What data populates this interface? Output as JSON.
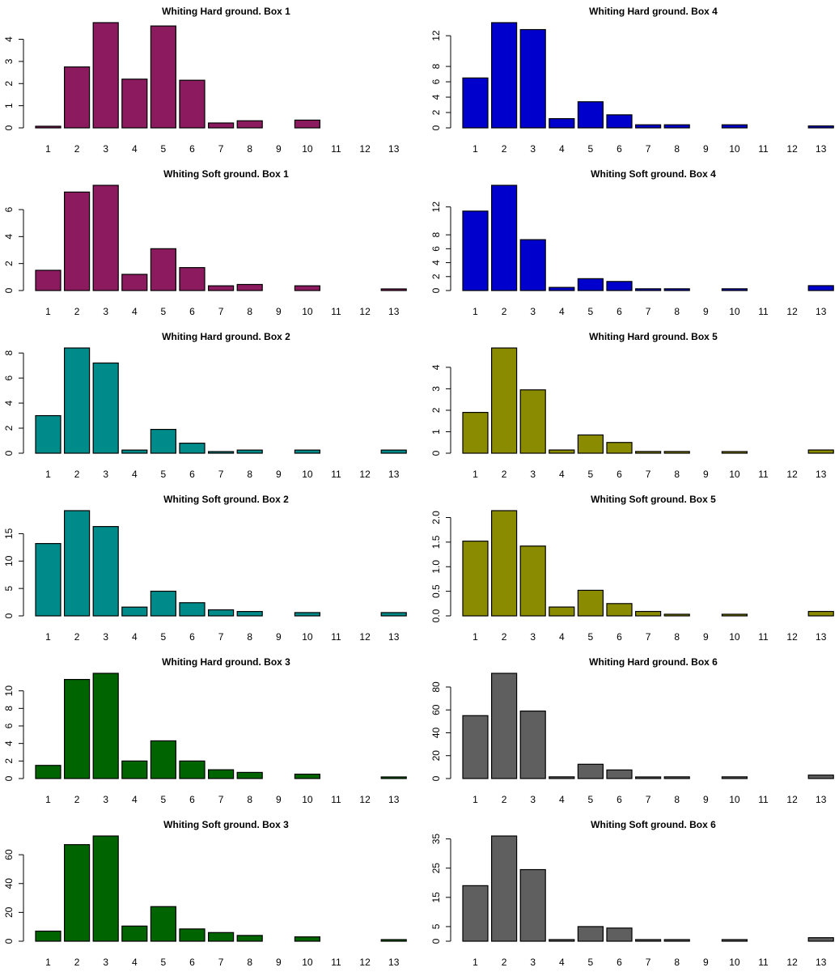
{
  "chart_data": [
    {
      "type": "bar",
      "title": "Whiting Hard ground. Box 1",
      "color": "#8B1A5E",
      "categories": [
        "1",
        "2",
        "3",
        "4",
        "5",
        "6",
        "7",
        "8",
        "9",
        "10",
        "11",
        "12",
        "13"
      ],
      "values": [
        0.02,
        2.75,
        4.75,
        2.2,
        4.6,
        2.15,
        0.22,
        0.32,
        0,
        0.35,
        0,
        0,
        0
      ],
      "ylim": [
        0,
        4.75
      ],
      "yticks": [
        0,
        1,
        2,
        3,
        4
      ],
      "ytick_labels": [
        "0",
        "1",
        "2",
        "3",
        "4"
      ],
      "xtick_labels": [
        "1",
        "2",
        "3",
        "4",
        "5",
        "6",
        "7",
        "8",
        "9",
        "10",
        "11",
        "12",
        "13"
      ]
    },
    {
      "type": "bar",
      "title": "Whiting Hard ground. Box 4",
      "color": "#0000CD",
      "categories": [
        "1",
        "2",
        "3",
        "4",
        "5",
        "6",
        "7",
        "8",
        "9",
        "10",
        "11",
        "12",
        "13"
      ],
      "values": [
        6.5,
        13.7,
        12.8,
        1.2,
        3.4,
        1.7,
        0.4,
        0.4,
        0,
        0.4,
        0,
        0,
        0.25
      ],
      "ylim": [
        0,
        13.7
      ],
      "yticks": [
        0,
        2,
        4,
        6,
        8,
        12
      ],
      "ytick_labels": [
        "0",
        "2",
        "4",
        "6",
        "8",
        "12"
      ],
      "xtick_labels": [
        "1",
        "2",
        "3",
        "4",
        "5",
        "6",
        "7",
        "8",
        "9",
        "10",
        "11",
        "12",
        "13"
      ]
    },
    {
      "type": "bar",
      "title": "Whiting Soft ground. Box 1",
      "color": "#8B1A5E",
      "categories": [
        "1",
        "2",
        "3",
        "4",
        "5",
        "6",
        "7",
        "8",
        "9",
        "10",
        "11",
        "12",
        "13"
      ],
      "values": [
        1.5,
        7.3,
        7.8,
        1.2,
        3.1,
        1.7,
        0.35,
        0.45,
        0,
        0.35,
        0,
        0,
        0.12
      ],
      "ylim": [
        0,
        7.8
      ],
      "yticks": [
        0,
        2,
        4,
        6
      ],
      "ytick_labels": [
        "0",
        "2",
        "4",
        "6"
      ],
      "xtick_labels": [
        "1",
        "2",
        "3",
        "4",
        "5",
        "6",
        "7",
        "8",
        "9",
        "10",
        "11",
        "12",
        "13"
      ]
    },
    {
      "type": "bar",
      "title": "Whiting Soft ground. Box 4",
      "color": "#0000CD",
      "categories": [
        "1",
        "2",
        "3",
        "4",
        "5",
        "6",
        "7",
        "8",
        "9",
        "10",
        "11",
        "12",
        "13"
      ],
      "values": [
        11.4,
        15.1,
        7.3,
        0.45,
        1.7,
        1.3,
        0.25,
        0.25,
        0,
        0.25,
        0,
        0,
        0.7
      ],
      "ylim": [
        0,
        15.1
      ],
      "yticks": [
        0,
        2,
        4,
        6,
        8,
        12
      ],
      "ytick_labels": [
        "0",
        "2",
        "4",
        "6",
        "8",
        "12"
      ],
      "xtick_labels": [
        "1",
        "2",
        "3",
        "4",
        "5",
        "6",
        "7",
        "8",
        "9",
        "10",
        "11",
        "12",
        "13"
      ]
    },
    {
      "type": "bar",
      "title": "Whiting Hard ground. Box 2",
      "color": "#008B8B",
      "categories": [
        "1",
        "2",
        "3",
        "4",
        "5",
        "6",
        "7",
        "8",
        "9",
        "10",
        "11",
        "12",
        "13"
      ],
      "values": [
        3.0,
        8.4,
        7.2,
        0.25,
        1.9,
        0.8,
        0.12,
        0.25,
        0,
        0.25,
        0,
        0,
        0.25
      ],
      "ylim": [
        0,
        8.4
      ],
      "yticks": [
        0,
        2,
        4,
        6,
        8
      ],
      "ytick_labels": [
        "0",
        "2",
        "4",
        "6",
        "8"
      ],
      "xtick_labels": [
        "1",
        "2",
        "3",
        "4",
        "5",
        "6",
        "7",
        "8",
        "9",
        "10",
        "11",
        "12",
        "13"
      ]
    },
    {
      "type": "bar",
      "title": "Whiting Hard ground. Box 5",
      "color": "#8B8B00",
      "categories": [
        "1",
        "2",
        "3",
        "4",
        "5",
        "6",
        "7",
        "8",
        "9",
        "10",
        "11",
        "12",
        "13"
      ],
      "values": [
        1.9,
        4.9,
        2.95,
        0.15,
        0.85,
        0.5,
        0.08,
        0.08,
        0,
        0.03,
        0,
        0,
        0.15
      ],
      "ylim": [
        0,
        4.9
      ],
      "yticks": [
        0,
        1,
        2,
        3,
        4
      ],
      "ytick_labels": [
        "0",
        "1",
        "2",
        "3",
        "4"
      ],
      "xtick_labels": [
        "1",
        "2",
        "3",
        "4",
        "5",
        "6",
        "7",
        "8",
        "9",
        "10",
        "11",
        "12",
        "13"
      ]
    },
    {
      "type": "bar",
      "title": "Whiting Soft ground. Box 2",
      "color": "#008B8B",
      "categories": [
        "1",
        "2",
        "3",
        "4",
        "5",
        "6",
        "7",
        "8",
        "9",
        "10",
        "11",
        "12",
        "13"
      ],
      "values": [
        13.2,
        19.2,
        16.3,
        1.6,
        4.5,
        2.4,
        1.1,
        0.8,
        0,
        0.6,
        0,
        0,
        0.6
      ],
      "ylim": [
        0,
        19.2
      ],
      "yticks": [
        0,
        5,
        10,
        15
      ],
      "ytick_labels": [
        "0",
        "5",
        "10",
        "15"
      ],
      "xtick_labels": [
        "1",
        "2",
        "3",
        "4",
        "5",
        "6",
        "7",
        "8",
        "9",
        "10",
        "11",
        "12",
        "13"
      ]
    },
    {
      "type": "bar",
      "title": "Whiting Soft ground. Box 5",
      "color": "#8B8B00",
      "categories": [
        "1",
        "2",
        "3",
        "4",
        "5",
        "6",
        "7",
        "8",
        "9",
        "10",
        "11",
        "12",
        "13"
      ],
      "values": [
        1.52,
        2.14,
        1.42,
        0.18,
        0.52,
        0.25,
        0.09,
        0.03,
        0,
        0.03,
        0,
        0,
        0.09
      ],
      "ylim": [
        0,
        2.14
      ],
      "yticks": [
        0,
        0.5,
        1,
        1.5,
        2
      ],
      "ytick_labels": [
        "0.0",
        "0.5",
        "1.0",
        "1.5",
        "2.0"
      ],
      "xtick_labels": [
        "1",
        "2",
        "3",
        "4",
        "5",
        "6",
        "7",
        "8",
        "9",
        "10",
        "11",
        "12",
        "13"
      ]
    },
    {
      "type": "bar",
      "title": "Whiting Hard ground. Box 3",
      "color": "#006400",
      "categories": [
        "1",
        "2",
        "3",
        "4",
        "5",
        "6",
        "7",
        "8",
        "9",
        "10",
        "11",
        "12",
        "13"
      ],
      "values": [
        1.5,
        11.3,
        12.0,
        2.0,
        4.3,
        2.0,
        1.0,
        0.7,
        0,
        0.5,
        0,
        0,
        0.1
      ],
      "ylim": [
        0,
        12.0
      ],
      "yticks": [
        0,
        2,
        4,
        6,
        8,
        10
      ],
      "ytick_labels": [
        "0",
        "2",
        "4",
        "6",
        "8",
        "10"
      ],
      "xtick_labels": [
        "1",
        "2",
        "3",
        "4",
        "5",
        "6",
        "7",
        "8",
        "9",
        "10",
        "11",
        "12",
        "13"
      ]
    },
    {
      "type": "bar",
      "title": "Whiting Hard ground. Box 6",
      "color": "#5F5F5F",
      "categories": [
        "1",
        "2",
        "3",
        "4",
        "5",
        "6",
        "7",
        "8",
        "9",
        "10",
        "11",
        "12",
        "13"
      ],
      "values": [
        55,
        92,
        59,
        1.5,
        12.5,
        7.5,
        0.5,
        1.5,
        0,
        1.5,
        0,
        0,
        3
      ],
      "ylim": [
        0,
        92
      ],
      "yticks": [
        0,
        20,
        40,
        60,
        80
      ],
      "ytick_labels": [
        "0",
        "20",
        "40",
        "60",
        "80"
      ],
      "xtick_labels": [
        "1",
        "2",
        "3",
        "4",
        "5",
        "6",
        "7",
        "8",
        "9",
        "10",
        "11",
        "12",
        "13"
      ]
    },
    {
      "type": "bar",
      "title": "Whiting Soft ground. Box 3",
      "color": "#006400",
      "categories": [
        "1",
        "2",
        "3",
        "4",
        "5",
        "6",
        "7",
        "8",
        "9",
        "10",
        "11",
        "12",
        "13"
      ],
      "values": [
        7,
        67,
        73,
        10.5,
        24,
        8.5,
        6,
        4,
        0,
        3,
        0,
        0,
        1
      ],
      "ylim": [
        0,
        73
      ],
      "yticks": [
        0,
        20,
        40,
        60
      ],
      "ytick_labels": [
        "0",
        "20",
        "40",
        "60"
      ],
      "xtick_labels": [
        "1",
        "2",
        "3",
        "4",
        "5",
        "6",
        "7",
        "8",
        "9",
        "10",
        "11",
        "12",
        "13"
      ]
    },
    {
      "type": "bar",
      "title": "Whiting Soft ground. Box 6",
      "color": "#5F5F5F",
      "categories": [
        "1",
        "2",
        "3",
        "4",
        "5",
        "6",
        "7",
        "8",
        "9",
        "10",
        "11",
        "12",
        "13"
      ],
      "values": [
        19,
        36,
        24.5,
        0.5,
        5,
        4.5,
        0.4,
        0.4,
        0,
        0.4,
        0,
        0,
        1.2
      ],
      "ylim": [
        0,
        36
      ],
      "yticks": [
        0,
        5,
        15,
        25,
        35
      ],
      "ytick_labels": [
        "0",
        "5",
        "15",
        "25",
        "35"
      ],
      "xtick_labels": [
        "1",
        "2",
        "3",
        "4",
        "5",
        "6",
        "7",
        "8",
        "9",
        "10",
        "11",
        "12",
        "13"
      ]
    }
  ]
}
